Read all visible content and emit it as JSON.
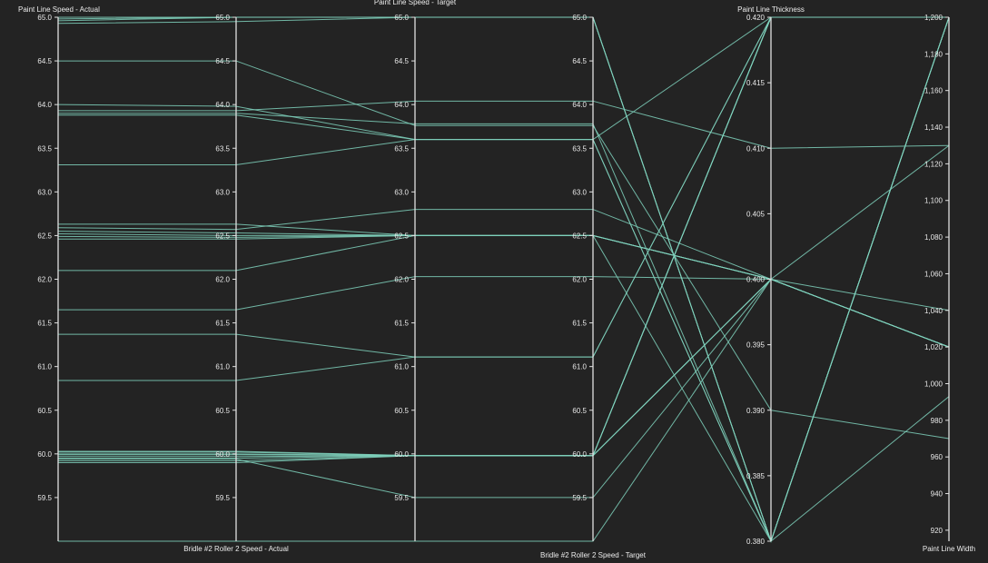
{
  "chart_data": {
    "type": "parallel-coordinates",
    "line_color": "#7fd1bc",
    "axes": [
      {
        "key": "pls_actual",
        "title": "Paint Line Speed - Actual",
        "range": [
          59.0,
          65.0
        ],
        "ticks": [
          "65.0",
          "64.5",
          "64.0",
          "63.5",
          "63.0",
          "62.5",
          "62.0",
          "61.5",
          "61.0",
          "60.5",
          "60.0",
          "59.5"
        ]
      },
      {
        "key": "br_actual",
        "title": "Bridle #2 Roller 2 Speed - Actual",
        "range": [
          59.0,
          65.0
        ],
        "ticks": [
          "65.0",
          "64.5",
          "64.0",
          "63.5",
          "63.0",
          "62.5",
          "62.0",
          "61.5",
          "61.0",
          "60.5",
          "60.0",
          "59.5"
        ]
      },
      {
        "key": "pls_target",
        "title": "Paint Line Speed - Target",
        "range": [
          59.0,
          65.0
        ],
        "ticks": [
          "65.0",
          "64.5",
          "64.0",
          "63.5",
          "63.0",
          "62.5",
          "62.0",
          "61.5",
          "61.0",
          "60.5",
          "60.0",
          "59.5"
        ]
      },
      {
        "key": "br_target",
        "title": "Bridle #2 Roller 2 Speed - Target",
        "range": [
          59.0,
          65.0
        ],
        "ticks": [
          "65.0",
          "64.5",
          "64.0",
          "63.5",
          "63.0",
          "62.5",
          "62.0",
          "61.5",
          "61.0",
          "60.5",
          "60.0",
          "59.5"
        ]
      },
      {
        "key": "thickness",
        "title": "Paint Line Thickness",
        "range": [
          0.38,
          0.42
        ],
        "ticks": [
          "0.420",
          "0.415",
          "0.410",
          "0.405",
          "0.400",
          "0.395",
          "0.390",
          "0.385",
          "0.380"
        ]
      },
      {
        "key": "width",
        "title": "Paint Line Width",
        "range": [
          914,
          1200
        ],
        "ticks": [
          "1,200",
          "1,180",
          "1,160",
          "1,140",
          "1,120",
          "1,100",
          "1,080",
          "1,060",
          "1,040",
          "1,020",
          "1,000",
          "980",
          "960",
          "940",
          "920"
        ]
      }
    ],
    "records": [
      [
        65.0,
        65.0,
        65.0,
        65.0,
        0.38,
        1200
      ],
      [
        64.98,
        65.0,
        65.0,
        65.0,
        0.38,
        1200
      ],
      [
        64.96,
        65.0,
        65.0,
        65.0,
        0.38,
        1200
      ],
      [
        64.93,
        64.95,
        65.0,
        65.0,
        0.38,
        1200
      ],
      [
        64.0,
        63.98,
        63.6,
        63.6,
        0.42,
        1200
      ],
      [
        63.93,
        63.93,
        64.04,
        64.04,
        0.41,
        1130
      ],
      [
        63.9,
        63.9,
        63.78,
        63.78,
        0.38,
        1200
      ],
      [
        63.88,
        63.88,
        63.6,
        63.6,
        0.38,
        1200
      ],
      [
        63.31,
        63.31,
        63.6,
        63.6,
        0.38,
        1200
      ],
      [
        62.63,
        62.63,
        62.5,
        62.5,
        0.4,
        1020
      ],
      [
        62.59,
        62.57,
        62.8,
        62.8,
        0.4,
        1040
      ],
      [
        62.55,
        62.53,
        62.5,
        62.5,
        0.4,
        1020
      ],
      [
        62.52,
        62.5,
        62.5,
        62.5,
        0.4,
        1020
      ],
      [
        62.49,
        62.48,
        62.5,
        62.5,
        0.4,
        1020
      ],
      [
        62.46,
        62.46,
        62.5,
        62.5,
        0.4,
        1020
      ],
      [
        61.65,
        61.65,
        62.03,
        62.03,
        0.4,
        1130
      ],
      [
        61.37,
        61.37,
        61.11,
        61.11,
        0.42,
        1200
      ],
      [
        60.84,
        60.84,
        61.11,
        61.11,
        0.42,
        1200
      ],
      [
        60.03,
        60.03,
        59.98,
        59.98,
        0.42,
        1200
      ],
      [
        60.02,
        60.02,
        59.98,
        59.98,
        0.42,
        1200
      ],
      [
        60.0,
        60.0,
        59.98,
        59.98,
        0.42,
        1200
      ],
      [
        59.99,
        59.99,
        59.98,
        59.98,
        0.42,
        1200
      ],
      [
        59.97,
        59.97,
        59.98,
        59.98,
        0.42,
        1200
      ],
      [
        59.95,
        59.95,
        59.98,
        59.98,
        0.4,
        1020
      ],
      [
        59.92,
        59.92,
        59.98,
        59.98,
        0.4,
        1020
      ],
      [
        59.9,
        59.9,
        59.98,
        59.98,
        0.4,
        1020
      ],
      [
        59.94,
        59.94,
        59.5,
        59.5,
        0.4,
        1020
      ],
      [
        59.0,
        59.0,
        59.0,
        59.0,
        0.4,
        1020
      ],
      [
        64.5,
        64.5,
        63.76,
        63.76,
        0.39,
        970
      ],
      [
        62.1,
        62.1,
        62.5,
        62.5,
        0.38,
        993
      ]
    ]
  }
}
